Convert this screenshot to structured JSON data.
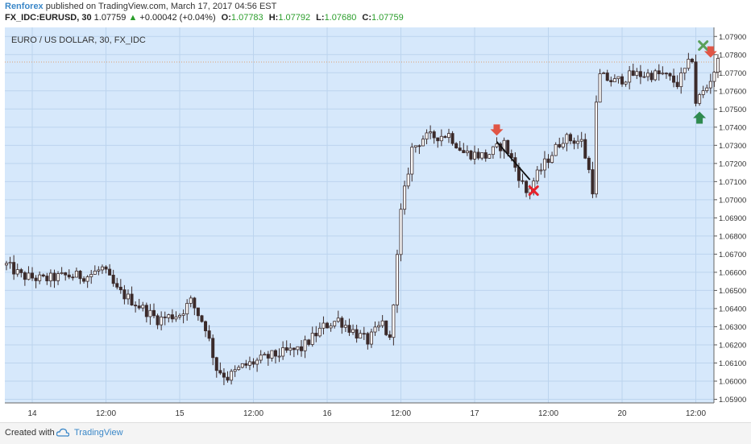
{
  "header": {
    "author": "Renforex",
    "published": "published on TradingView.com, March 17, 2017 04:56 EST",
    "symbol": "FX_IDC:EURUSD, 30",
    "last": "1.07759",
    "change": "+0.00042 (+0.04%)",
    "o_label": "O:",
    "o_value": "1.07783",
    "h_label": "H:",
    "h_value": "1.07792",
    "l_label": "L:",
    "l_value": "1.07680",
    "c_label": "C:",
    "c_value": "1.07759"
  },
  "footer": {
    "created_with": "Created with",
    "brand": "TradingView"
  },
  "colors": {
    "plot_bg": "#d6e8fb",
    "grid": "#bcd4ee",
    "candle": "#3b2a2a",
    "bear_marker": "#e05545",
    "bull_marker": "#2f8a4f",
    "x_red": "#e8212a",
    "x_green": "#5aa05a",
    "price_line": "#e0a070",
    "link": "#3a87c8"
  },
  "chart_data": {
    "type": "candlestick",
    "title": "EURO / US DOLLAR, 30, FX_IDC",
    "ylim": [
      1.0588,
      1.0795
    ],
    "y_ticks": [
      "1.07900",
      "1.07800",
      "1.07700",
      "1.07600",
      "1.07500",
      "1.07400",
      "1.07300",
      "1.07200",
      "1.07100",
      "1.07000",
      "1.06900",
      "1.06800",
      "1.06700",
      "1.06600",
      "1.06500",
      "1.06400",
      "1.06300",
      "1.06200",
      "1.06100",
      "1.06000",
      "1.05900"
    ],
    "x_ticks": [
      "14",
      "12:00",
      "15",
      "12:00",
      "16",
      "12:00",
      "17",
      "12:00",
      "20",
      "12:00"
    ],
    "current_price": 1.07759,
    "close_path": [
      {
        "bar": 0,
        "price": 1.0664
      },
      {
        "bar": 4,
        "price": 1.0658
      },
      {
        "bar": 10,
        "price": 1.0656
      },
      {
        "bar": 16,
        "price": 1.0658
      },
      {
        "bar": 22,
        "price": 1.0658
      },
      {
        "bar": 26,
        "price": 1.0662
      },
      {
        "bar": 30,
        "price": 1.065
      },
      {
        "bar": 35,
        "price": 1.0643
      },
      {
        "bar": 41,
        "price": 1.0634
      },
      {
        "bar": 47,
        "price": 1.0637
      },
      {
        "bar": 50,
        "price": 1.0644
      },
      {
        "bar": 54,
        "price": 1.063
      },
      {
        "bar": 57,
        "price": 1.0607
      },
      {
        "bar": 60,
        "price": 1.0602
      },
      {
        "bar": 64,
        "price": 1.0608
      },
      {
        "bar": 72,
        "price": 1.0614
      },
      {
        "bar": 80,
        "price": 1.0618
      },
      {
        "bar": 86,
        "price": 1.063
      },
      {
        "bar": 90,
        "price": 1.0634
      },
      {
        "bar": 95,
        "price": 1.0626
      },
      {
        "bar": 98,
        "price": 1.0622
      },
      {
        "bar": 102,
        "price": 1.0632
      },
      {
        "bar": 104,
        "price": 1.0622
      },
      {
        "bar": 106,
        "price": 1.0668
      },
      {
        "bar": 107,
        "price": 1.0693
      },
      {
        "bar": 110,
        "price": 1.0728
      },
      {
        "bar": 113,
        "price": 1.0734
      },
      {
        "bar": 120,
        "price": 1.0736
      },
      {
        "bar": 124,
        "price": 1.0726
      },
      {
        "bar": 130,
        "price": 1.0724
      },
      {
        "bar": 135,
        "price": 1.0731
      },
      {
        "bar": 138,
        "price": 1.0718
      },
      {
        "bar": 141,
        "price": 1.0704
      },
      {
        "bar": 146,
        "price": 1.072
      },
      {
        "bar": 151,
        "price": 1.0734
      },
      {
        "bar": 156,
        "price": 1.0732
      },
      {
        "bar": 158,
        "price": 1.0716
      },
      {
        "bar": 159,
        "price": 1.0706
      },
      {
        "bar": 160,
        "price": 1.0752
      },
      {
        "bar": 161,
        "price": 1.0768
      },
      {
        "bar": 165,
        "price": 1.0765
      },
      {
        "bar": 170,
        "price": 1.0769
      },
      {
        "bar": 178,
        "price": 1.0769
      },
      {
        "bar": 182,
        "price": 1.0764
      },
      {
        "bar": 186,
        "price": 1.0778
      },
      {
        "bar": 187,
        "price": 1.0754
      },
      {
        "bar": 190,
        "price": 1.0762
      },
      {
        "bar": 193,
        "price": 1.0776
      }
    ],
    "trade_line": [
      {
        "bar": 133,
        "price": 1.0732
      },
      {
        "bar": 142,
        "price": 1.0711
      }
    ],
    "markers": [
      {
        "kind": "arrow-down",
        "bar": 133,
        "price": 1.0738
      },
      {
        "kind": "x",
        "bar": 143,
        "price": 1.0705
      },
      {
        "kind": "x-green",
        "bar": 189,
        "price": 1.0785
      },
      {
        "kind": "arrow-down",
        "bar": 191,
        "price": 1.0781
      },
      {
        "kind": "arrow-up",
        "bar": 188,
        "price": 1.0745
      }
    ]
  }
}
